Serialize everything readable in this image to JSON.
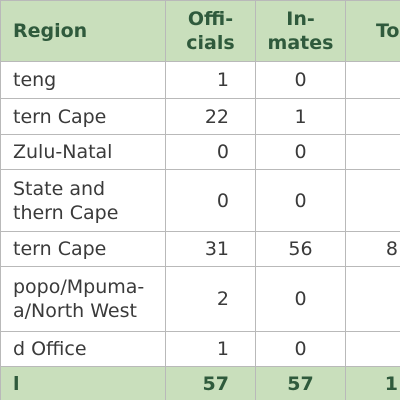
{
  "header": [
    [
      "Region"
    ],
    [
      "Offi-",
      "cials"
    ],
    [
      "In-",
      "mates"
    ],
    [
      "To"
    ]
  ],
  "rows": [
    {
      "region": [
        "teng"
      ],
      "officials": 1,
      "inmates": 0
    },
    {
      "region": [
        "tern Cape"
      ],
      "officials": 22,
      "inmates": 1
    },
    {
      "region": [
        "Zulu-Natal"
      ],
      "officials": 0,
      "inmates": 0
    },
    {
      "region": [
        "State and",
        "thern Cape"
      ],
      "officials": 0,
      "inmates": 0
    },
    {
      "region": [
        "tern Cape"
      ],
      "officials": 31,
      "inmates": 56,
      "total": "8"
    },
    {
      "region": [
        "popo/Mpuma-",
        "a/North West"
      ],
      "officials": 2,
      "inmates": 0
    },
    {
      "region": [
        "d Office"
      ],
      "officials": 1,
      "inmates": 0
    },
    {
      "region": [
        "l"
      ],
      "officials": 57,
      "inmates": 57,
      "total": "1"
    }
  ]
}
